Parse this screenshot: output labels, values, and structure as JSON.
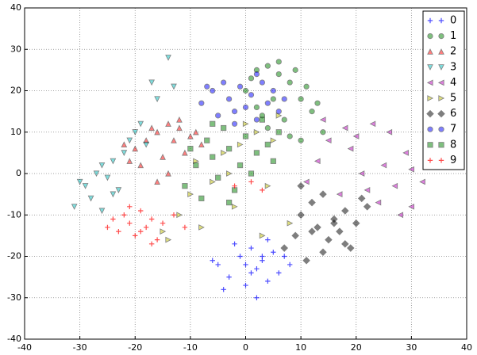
{
  "chart_data": {
    "type": "scatter",
    "xlim": [
      -40,
      40
    ],
    "ylim": [
      -40,
      40
    ],
    "xticks": [
      -40,
      -30,
      -20,
      -10,
      0,
      10,
      20,
      30,
      40
    ],
    "yticks": [
      -40,
      -30,
      -20,
      -10,
      0,
      10,
      20,
      30,
      40
    ],
    "grid": true,
    "legend": "upper right",
    "series": [
      {
        "name": "0",
        "color": "#0000ff",
        "marker": "+",
        "x": [
          -5,
          -3,
          -1,
          0,
          1,
          2,
          3,
          4,
          5,
          6,
          -4,
          -2,
          0,
          2,
          4,
          7,
          -6,
          1,
          3,
          8
        ],
        "values": [
          -22,
          -25,
          -20,
          -27,
          -18,
          -23,
          -21,
          -26,
          -19,
          -24,
          -28,
          -17,
          -22,
          -30,
          -16,
          -20,
          -21,
          -24,
          -20,
          -22
        ]
      },
      {
        "name": "1",
        "color": "#008000",
        "marker": "o",
        "x": [
          0,
          2,
          4,
          6,
          8,
          10,
          12,
          14,
          5,
          7,
          9,
          11,
          3,
          1,
          13,
          6,
          8,
          4,
          10,
          2
        ],
        "values": [
          20,
          25,
          26,
          24,
          22,
          18,
          15,
          10,
          18,
          13,
          25,
          21,
          14,
          23,
          17,
          27,
          9,
          11,
          8,
          16
        ]
      },
      {
        "name": "2",
        "color": "#ff0000",
        "marker": "^",
        "x": [
          -20,
          -18,
          -16,
          -14,
          -12,
          -10,
          -8,
          -19,
          -15,
          -13,
          -11,
          -17,
          -21,
          -9,
          -14,
          -16,
          -12,
          -22
        ],
        "values": [
          6,
          8,
          10,
          12,
          11,
          9,
          7,
          2,
          4,
          8,
          5,
          11,
          3,
          10,
          0,
          -2,
          13,
          7
        ]
      },
      {
        "name": "3",
        "color": "#00bfbf",
        "marker": "v",
        "x": [
          -31,
          -29,
          -28,
          -27,
          -26,
          -25,
          -24,
          -23,
          -22,
          -21,
          -20,
          -19,
          -18,
          -17,
          -30,
          -26,
          -24,
          -14,
          -16,
          -13
        ],
        "values": [
          -8,
          -3,
          -6,
          0,
          2,
          -1,
          3,
          -4,
          5,
          8,
          10,
          12,
          7,
          22,
          -2,
          -9,
          -5,
          28,
          18,
          21
        ]
      },
      {
        "name": "4",
        "color": "#bf00bf",
        "marker": "<",
        "x": [
          11,
          13,
          15,
          17,
          19,
          21,
          23,
          25,
          27,
          29,
          30,
          32,
          20,
          24,
          26,
          28,
          22,
          18,
          30,
          14
        ],
        "values": [
          -2,
          3,
          8,
          -5,
          6,
          0,
          12,
          2,
          -3,
          5,
          -8,
          -2,
          9,
          -7,
          10,
          -10,
          -4,
          11,
          1,
          13
        ]
      },
      {
        "name": "5",
        "color": "#bfbf00",
        "marker": ">",
        "x": [
          -15,
          -12,
          -10,
          -8,
          -6,
          -4,
          -2,
          0,
          2,
          4,
          6,
          8,
          -14,
          -9,
          -3,
          3,
          -1,
          5
        ],
        "values": [
          -14,
          -10,
          -5,
          -13,
          -2,
          5,
          -8,
          12,
          10,
          -3,
          14,
          -12,
          -16,
          3,
          0,
          -15,
          7,
          8
        ]
      },
      {
        "name": "6",
        "color": "#000000",
        "marker": "D",
        "x": [
          7,
          9,
          10,
          11,
          12,
          13,
          14,
          15,
          16,
          17,
          18,
          19,
          20,
          21,
          22,
          10,
          14,
          18,
          16,
          12
        ],
        "values": [
          -18,
          -15,
          -10,
          -21,
          -7,
          -13,
          -5,
          -16,
          -11,
          -14,
          -9,
          -18,
          -12,
          -6,
          -8,
          -3,
          -19,
          -17,
          -12,
          -14
        ]
      },
      {
        "name": "7",
        "color": "#0000ff",
        "marker": "o",
        "x": [
          -8,
          -6,
          -5,
          -4,
          -3,
          -2,
          -1,
          0,
          1,
          2,
          3,
          4,
          5,
          6,
          -7,
          -2,
          2,
          7
        ],
        "values": [
          17,
          20,
          14,
          22,
          18,
          15,
          21,
          16,
          19,
          13,
          22,
          17,
          20,
          15,
          21,
          12,
          24,
          18
        ]
      },
      {
        "name": "8",
        "color": "#008000",
        "marker": "s",
        "x": [
          -11,
          -9,
          -8,
          -7,
          -6,
          -5,
          -4,
          -3,
          -2,
          -1,
          0,
          1,
          2,
          3,
          4,
          5,
          -10,
          -6,
          -3,
          6
        ],
        "values": [
          -3,
          2,
          -6,
          8,
          4,
          -1,
          11,
          6,
          -4,
          2,
          9,
          0,
          5,
          13,
          7,
          3,
          6,
          12,
          -7,
          10
        ]
      },
      {
        "name": "9",
        "color": "#ff0000",
        "marker": "+",
        "x": [
          -25,
          -24,
          -23,
          -22,
          -21,
          -20,
          -19,
          -18,
          -17,
          -16,
          -15,
          -13,
          -21,
          -19,
          -17,
          -11,
          1,
          -2,
          3
        ],
        "values": [
          -13,
          -11,
          -14,
          -10,
          -12,
          -15,
          -9,
          -13,
          -11,
          -16,
          -12,
          -10,
          -8,
          -14,
          -17,
          -13,
          -2,
          -3,
          -4
        ]
      }
    ]
  }
}
